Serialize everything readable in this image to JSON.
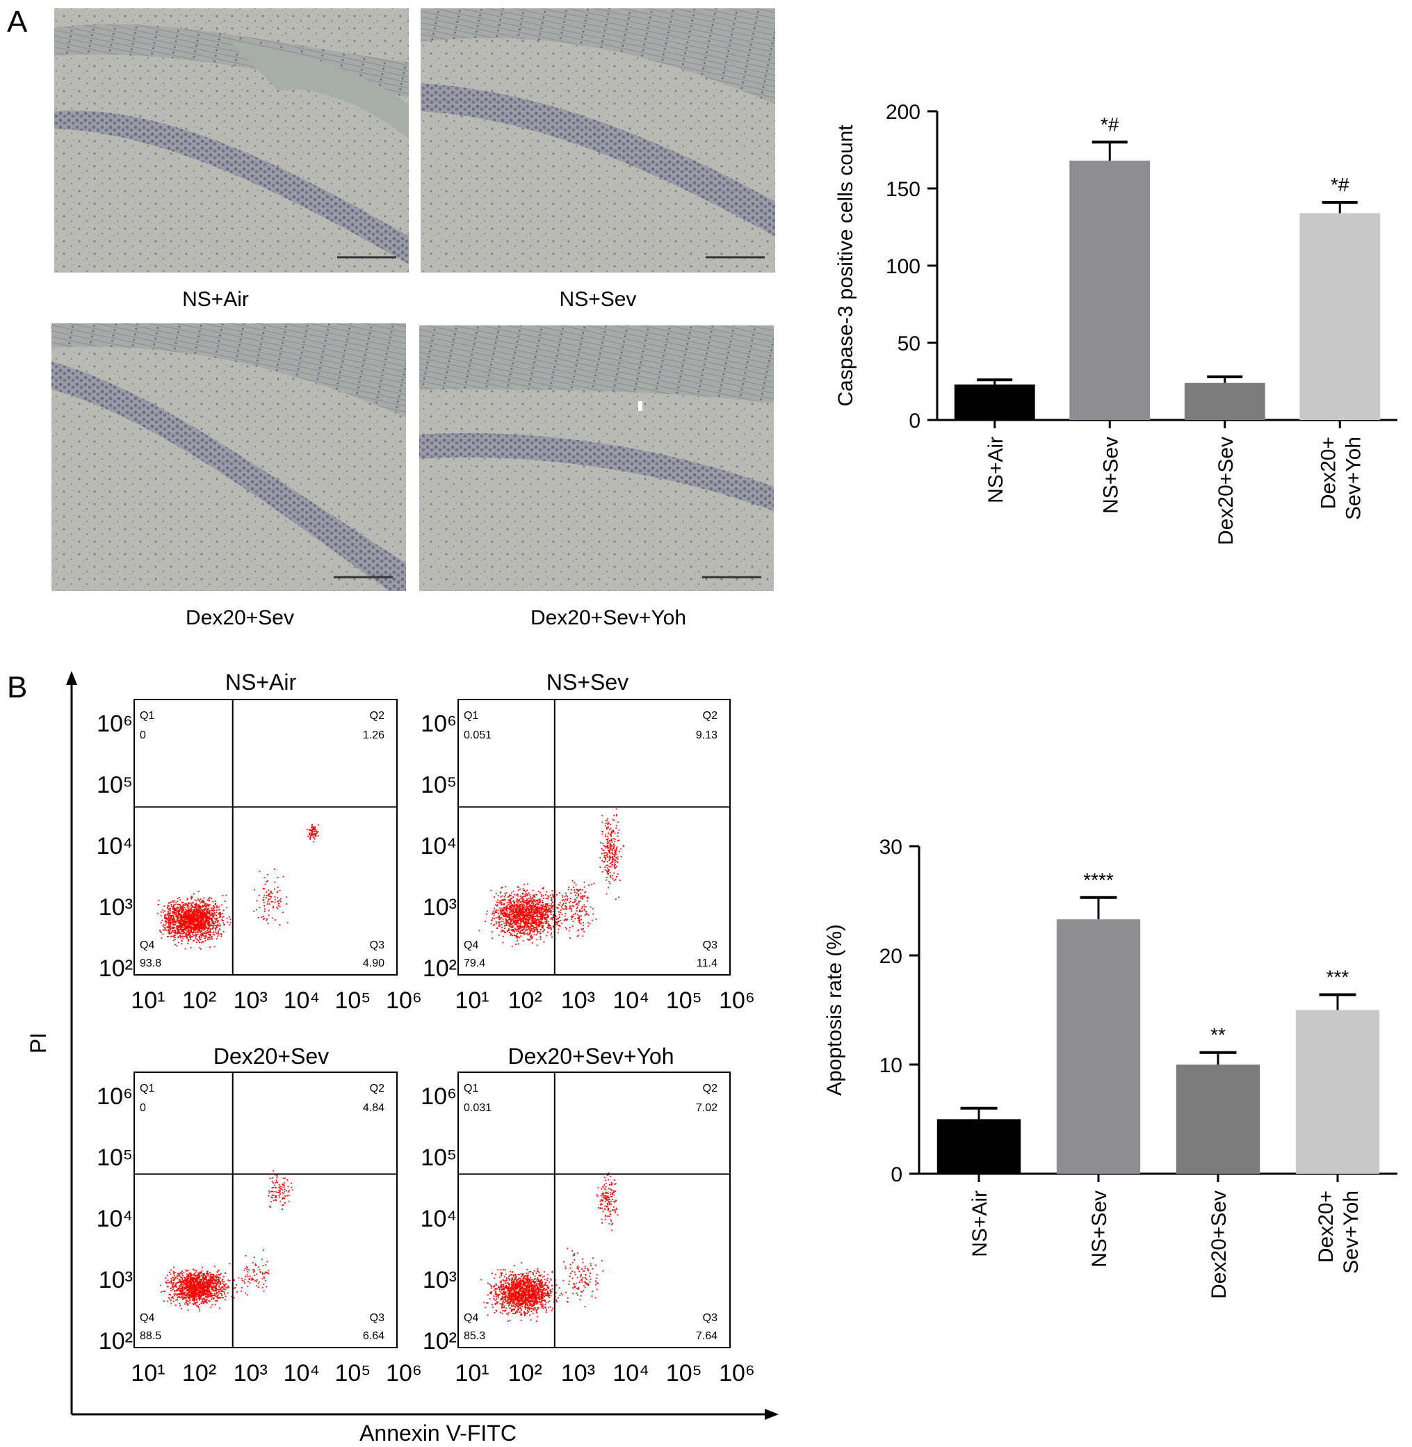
{
  "panel_a": {
    "letter": "A",
    "micrographs": [
      {
        "label": "NS+Air"
      },
      {
        "label": "NS+Sev"
      },
      {
        "label": "Dex20+Sev"
      },
      {
        "label": "Dex20+Sev+Yoh"
      }
    ]
  },
  "panel_b": {
    "letter": "B",
    "flow_y_label": "PI",
    "flow_x_label": "Annexin V-FITC",
    "flow_tick_labels": [
      "10¹",
      "10²",
      "10³",
      "10⁴",
      "10⁵",
      "10⁶"
    ],
    "flow_y_tick_labels": [
      "10²",
      "10³",
      "10⁴",
      "10⁵",
      "10⁶"
    ],
    "flow_plots": [
      {
        "title": "NS+Air",
        "q1": "0",
        "q2": "1.26",
        "q3": "4.90",
        "q4": "93.8"
      },
      {
        "title": "NS+Sev",
        "q1": "0.051",
        "q2": "9.13",
        "q3": "11.4",
        "q4": "79.4"
      },
      {
        "title": "Dex20+Sev",
        "q1": "0",
        "q2": "4.84",
        "q3": "6.64",
        "q4": "88.5"
      },
      {
        "title": "Dex20+Sev+Yoh",
        "q1": "0.031",
        "q2": "7.02",
        "q3": "7.64",
        "q4": "85.3"
      }
    ],
    "quadrant_names": {
      "q1": "Q1",
      "q2": "Q2",
      "q3": "Q3",
      "q4": "Q4"
    }
  },
  "chart_data": [
    {
      "type": "bar",
      "ylabel": "Caspase-3 positive cells count",
      "categories": [
        "NS+Air",
        "NS+Sev",
        "Dex20+Sev",
        "Dex20+Sev+Yoh"
      ],
      "category_label_lines": [
        [
          "NS+Air"
        ],
        [
          "NS+Sev"
        ],
        [
          "Dex20+Sev"
        ],
        [
          "Dex20+",
          "Sev+Yoh"
        ]
      ],
      "values": [
        23,
        168,
        24,
        134
      ],
      "errors": [
        3,
        12,
        4,
        7
      ],
      "significance": [
        "",
        "*#",
        "",
        "*#"
      ],
      "ylim": [
        0,
        200
      ],
      "yticks": [
        0,
        50,
        100,
        150,
        200
      ],
      "colors": [
        "#000000",
        "#8e8e92",
        "#7c7c7c",
        "#c8c8c8"
      ]
    },
    {
      "type": "bar",
      "ylabel": "Apoptosis rate (%)",
      "categories": [
        "NS+Air",
        "NS+Sev",
        "Dex20+Sev",
        "Dex20+Sev+Yoh"
      ],
      "category_label_lines": [
        [
          "NS+Air"
        ],
        [
          "NS+Sev"
        ],
        [
          "Dex20+Sev"
        ],
        [
          "Dex20+",
          "Sev+Yoh"
        ]
      ],
      "values": [
        5.0,
        23.3,
        10.0,
        15.0
      ],
      "errors": [
        1.0,
        2.0,
        1.1,
        1.4
      ],
      "significance": [
        "",
        "****",
        "**",
        "***"
      ],
      "ylim": [
        0,
        30
      ],
      "yticks": [
        0,
        10,
        20,
        30
      ],
      "colors": [
        "#000000",
        "#8e8e92",
        "#7c7c7c",
        "#c8c8c8"
      ]
    }
  ]
}
